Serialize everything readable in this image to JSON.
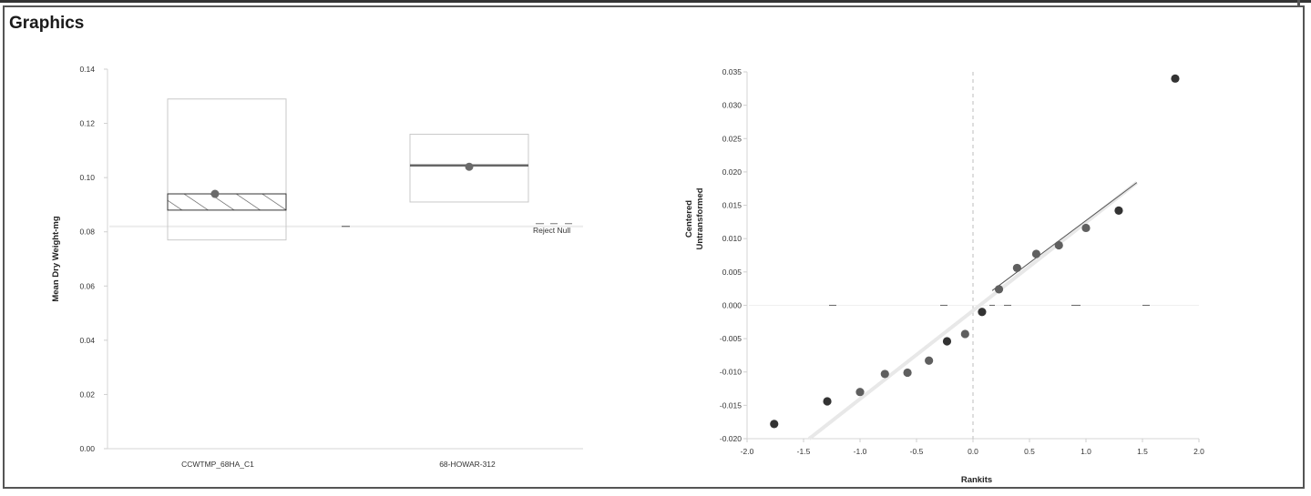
{
  "section": {
    "title": "Graphics"
  },
  "chart_data": [
    {
      "type": "box",
      "ylabel": "Mean Dry Weight-mg",
      "xlabel": "",
      "ylim": [
        0,
        0.14
      ],
      "yticks": [
        "0.00",
        "0.02",
        "0.04",
        "0.06",
        "0.08",
        "0.10",
        "0.12",
        "0.14"
      ],
      "categories": [
        "CCWTMP_68HA_C1",
        "68-HOWAR-312"
      ],
      "boxes": [
        {
          "name": "CCWTMP_68HA_C1",
          "low": 0.077,
          "q1": 0.088,
          "median": 0.094,
          "high": 0.129,
          "mean": 0.094,
          "hatched": true
        },
        {
          "name": "68-HOWAR-312",
          "low": 0.091,
          "q1": 0.104,
          "median": 0.1045,
          "high": 0.116,
          "mean": 0.104,
          "hatched": false
        }
      ],
      "reference_line": 0.082,
      "annotation": "Reject Null"
    },
    {
      "type": "scatter",
      "xlabel": "Rankits",
      "ylabel": "Centered Untransformed",
      "ylabel_lines": [
        "Centered",
        "Untransformed"
      ],
      "xlim": [
        -2.0,
        2.0
      ],
      "ylim": [
        -0.02,
        0.035
      ],
      "xticks": [
        "-2.0",
        "-1.5",
        "-1.0",
        "-0.5",
        "0.0",
        "0.5",
        "1.0",
        "1.5",
        "2.0"
      ],
      "yticks": [
        "-0.020",
        "-0.015",
        "-0.010",
        "-0.005",
        "0.000",
        "0.005",
        "0.010",
        "0.015",
        "0.020",
        "0.025",
        "0.030",
        "0.035"
      ],
      "points": [
        {
          "x": -1.76,
          "y": -0.0178
        },
        {
          "x": -1.29,
          "y": -0.0144
        },
        {
          "x": -1.0,
          "y": -0.013
        },
        {
          "x": -0.78,
          "y": -0.0103
        },
        {
          "x": -0.58,
          "y": -0.0101
        },
        {
          "x": -0.39,
          "y": -0.0083
        },
        {
          "x": -0.23,
          "y": -0.0054
        },
        {
          "x": -0.07,
          "y": -0.0043
        },
        {
          "x": 0.08,
          "y": -0.001
        },
        {
          "x": 0.23,
          "y": 0.0024
        },
        {
          "x": 0.39,
          "y": 0.0056
        },
        {
          "x": 0.56,
          "y": 0.0077
        },
        {
          "x": 0.76,
          "y": 0.009
        },
        {
          "x": 1.0,
          "y": 0.0116
        },
        {
          "x": 1.29,
          "y": 0.0142
        },
        {
          "x": 1.79,
          "y": 0.034
        }
      ],
      "fit_line": {
        "x1": -1.45,
        "y1": -0.02,
        "x2": 1.45,
        "y2": 0.0184
      }
    }
  ]
}
